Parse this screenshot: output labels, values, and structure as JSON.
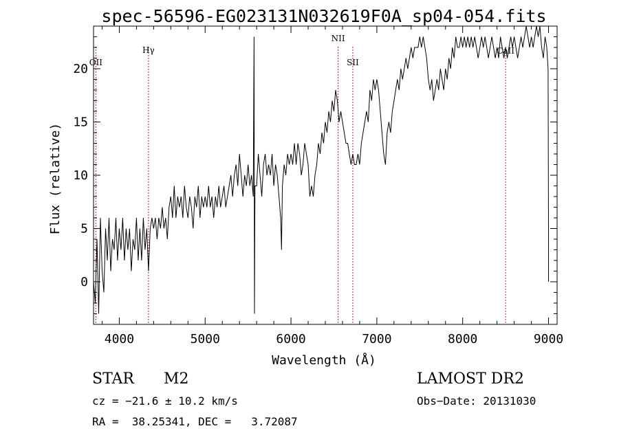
{
  "chart_data": {
    "type": "line",
    "title": "spec-56596-EG023131N032619F0A_sp04-054.fits",
    "xlabel": "Wavelength (Å)",
    "ylabel": "Flux (relative)",
    "xlim": [
      3700,
      9100
    ],
    "ylim": [
      -4,
      24
    ],
    "xticks": [
      4000,
      5000,
      6000,
      7000,
      8000,
      9000
    ],
    "yticks": [
      0,
      5,
      10,
      15,
      20
    ],
    "grid": false,
    "series": [
      {
        "points": [
          [
            3700,
            0
          ],
          [
            3720,
            -2
          ],
          [
            3740,
            4
          ],
          [
            3760,
            -3
          ],
          [
            3780,
            6
          ],
          [
            3800,
            1
          ],
          [
            3820,
            -1
          ],
          [
            3840,
            5
          ],
          [
            3860,
            2
          ],
          [
            3880,
            6
          ],
          [
            3900,
            1
          ],
          [
            3920,
            4
          ],
          [
            3940,
            3
          ],
          [
            3960,
            6
          ],
          [
            3980,
            2
          ],
          [
            4000,
            5
          ],
          [
            4020,
            3
          ],
          [
            4040,
            6
          ],
          [
            4060,
            2
          ],
          [
            4080,
            5
          ],
          [
            4100,
            3
          ],
          [
            4120,
            5
          ],
          [
            4140,
            1
          ],
          [
            4160,
            4
          ],
          [
            4180,
            3
          ],
          [
            4200,
            6
          ],
          [
            4220,
            2
          ],
          [
            4240,
            5
          ],
          [
            4260,
            2
          ],
          [
            4280,
            6
          ],
          [
            4300,
            3
          ],
          [
            4320,
            5
          ],
          [
            4340,
            1
          ],
          [
            4360,
            5
          ],
          [
            4380,
            6
          ],
          [
            4400,
            5
          ],
          [
            4420,
            6
          ],
          [
            4440,
            4
          ],
          [
            4460,
            6
          ],
          [
            4480,
            5
          ],
          [
            4500,
            7
          ],
          [
            4520,
            5
          ],
          [
            4540,
            6
          ],
          [
            4560,
            4
          ],
          [
            4580,
            7
          ],
          [
            4600,
            8
          ],
          [
            4620,
            6
          ],
          [
            4640,
            9
          ],
          [
            4660,
            6
          ],
          [
            4680,
            8
          ],
          [
            4700,
            7
          ],
          [
            4720,
            8
          ],
          [
            4740,
            6
          ],
          [
            4760,
            9
          ],
          [
            4780,
            7
          ],
          [
            4800,
            6
          ],
          [
            4820,
            8
          ],
          [
            4840,
            7
          ],
          [
            4860,
            5
          ],
          [
            4880,
            8
          ],
          [
            4900,
            7
          ],
          [
            4920,
            9
          ],
          [
            4940,
            6
          ],
          [
            4960,
            8
          ],
          [
            4980,
            7
          ],
          [
            5000,
            8
          ],
          [
            5020,
            7
          ],
          [
            5040,
            9
          ],
          [
            5060,
            7
          ],
          [
            5080,
            8
          ],
          [
            5100,
            6
          ],
          [
            5120,
            8
          ],
          [
            5140,
            7
          ],
          [
            5160,
            9
          ],
          [
            5180,
            7
          ],
          [
            5200,
            8
          ],
          [
            5220,
            9
          ],
          [
            5240,
            7
          ],
          [
            5260,
            8
          ],
          [
            5280,
            9
          ],
          [
            5300,
            10
          ],
          [
            5320,
            8
          ],
          [
            5340,
            10
          ],
          [
            5360,
            11
          ],
          [
            5380,
            9
          ],
          [
            5400,
            12
          ],
          [
            5420,
            10
          ],
          [
            5440,
            8
          ],
          [
            5460,
            10
          ],
          [
            5480,
            9
          ],
          [
            5500,
            11
          ],
          [
            5520,
            9
          ],
          [
            5540,
            10
          ],
          [
            5560,
            8
          ],
          [
            5570,
            23
          ],
          [
            5575,
            -3
          ],
          [
            5580,
            9
          ],
          [
            5600,
            9
          ],
          [
            5620,
            12
          ],
          [
            5640,
            10
          ],
          [
            5660,
            8
          ],
          [
            5680,
            11
          ],
          [
            5700,
            12
          ],
          [
            5720,
            10
          ],
          [
            5740,
            11
          ],
          [
            5760,
            10
          ],
          [
            5780,
            12
          ],
          [
            5800,
            9
          ],
          [
            5820,
            11
          ],
          [
            5840,
            10
          ],
          [
            5860,
            8
          ],
          [
            5880,
            6
          ],
          [
            5890,
            3
          ],
          [
            5900,
            9
          ],
          [
            5920,
            11
          ],
          [
            5940,
            10
          ],
          [
            5960,
            12
          ],
          [
            5980,
            11
          ],
          [
            6000,
            12
          ],
          [
            6020,
            11
          ],
          [
            6040,
            13
          ],
          [
            6060,
            11
          ],
          [
            6080,
            13
          ],
          [
            6100,
            12
          ],
          [
            6120,
            10
          ],
          [
            6140,
            11
          ],
          [
            6160,
            13
          ],
          [
            6180,
            12
          ],
          [
            6200,
            11
          ],
          [
            6220,
            8
          ],
          [
            6240,
            9
          ],
          [
            6260,
            8
          ],
          [
            6280,
            10
          ],
          [
            6300,
            11
          ],
          [
            6320,
            13
          ],
          [
            6340,
            12
          ],
          [
            6360,
            14
          ],
          [
            6380,
            13
          ],
          [
            6400,
            15
          ],
          [
            6420,
            14
          ],
          [
            6440,
            16
          ],
          [
            6460,
            15
          ],
          [
            6480,
            17
          ],
          [
            6500,
            16
          ],
          [
            6520,
            18
          ],
          [
            6540,
            17
          ],
          [
            6560,
            15
          ],
          [
            6580,
            16
          ],
          [
            6600,
            15
          ],
          [
            6620,
            14
          ],
          [
            6640,
            13
          ],
          [
            6660,
            13
          ],
          [
            6680,
            12
          ],
          [
            6700,
            11
          ],
          [
            6720,
            12
          ],
          [
            6740,
            11
          ],
          [
            6760,
            11
          ],
          [
            6780,
            12
          ],
          [
            6800,
            11
          ],
          [
            6820,
            13
          ],
          [
            6840,
            14
          ],
          [
            6860,
            15
          ],
          [
            6880,
            16
          ],
          [
            6900,
            15
          ],
          [
            6920,
            18
          ],
          [
            6940,
            17
          ],
          [
            6960,
            19
          ],
          [
            6980,
            18
          ],
          [
            7000,
            19
          ],
          [
            7020,
            18
          ],
          [
            7040,
            16
          ],
          [
            7060,
            14
          ],
          [
            7080,
            12
          ],
          [
            7100,
            11
          ],
          [
            7120,
            14
          ],
          [
            7140,
            15
          ],
          [
            7160,
            14
          ],
          [
            7180,
            16
          ],
          [
            7200,
            17
          ],
          [
            7220,
            18
          ],
          [
            7240,
            19
          ],
          [
            7260,
            18
          ],
          [
            7280,
            20
          ],
          [
            7300,
            19
          ],
          [
            7320,
            20
          ],
          [
            7340,
            21
          ],
          [
            7360,
            20
          ],
          [
            7380,
            21
          ],
          [
            7400,
            22
          ],
          [
            7420,
            21
          ],
          [
            7440,
            22
          ],
          [
            7460,
            22
          ],
          [
            7480,
            22
          ],
          [
            7500,
            23
          ],
          [
            7520,
            22
          ],
          [
            7540,
            23
          ],
          [
            7560,
            22
          ],
          [
            7580,
            21
          ],
          [
            7600,
            19
          ],
          [
            7620,
            18
          ],
          [
            7640,
            19
          ],
          [
            7660,
            17
          ],
          [
            7680,
            18
          ],
          [
            7700,
            19
          ],
          [
            7720,
            18
          ],
          [
            7740,
            20
          ],
          [
            7760,
            19
          ],
          [
            7780,
            18
          ],
          [
            7800,
            20
          ],
          [
            7820,
            19
          ],
          [
            7840,
            21
          ],
          [
            7860,
            20
          ],
          [
            7880,
            22
          ],
          [
            7900,
            21
          ],
          [
            7920,
            23
          ],
          [
            7940,
            22
          ],
          [
            7960,
            22
          ],
          [
            7980,
            23
          ],
          [
            8000,
            22
          ],
          [
            8020,
            23
          ],
          [
            8040,
            22
          ],
          [
            8060,
            23
          ],
          [
            8080,
            22
          ],
          [
            8100,
            23
          ],
          [
            8120,
            22
          ],
          [
            8140,
            23
          ],
          [
            8160,
            22
          ],
          [
            8180,
            21
          ],
          [
            8200,
            22
          ],
          [
            8220,
            23
          ],
          [
            8240,
            22
          ],
          [
            8260,
            23
          ],
          [
            8280,
            22
          ],
          [
            8300,
            21
          ],
          [
            8320,
            22
          ],
          [
            8340,
            23
          ],
          [
            8360,
            22
          ],
          [
            8380,
            21
          ],
          [
            8400,
            22
          ],
          [
            8420,
            21
          ],
          [
            8440,
            23
          ],
          [
            8460,
            22
          ],
          [
            8480,
            21
          ],
          [
            8500,
            22
          ],
          [
            8520,
            21
          ],
          [
            8540,
            22
          ],
          [
            8560,
            23
          ],
          [
            8580,
            22
          ],
          [
            8600,
            23
          ],
          [
            8620,
            22
          ],
          [
            8640,
            21
          ],
          [
            8660,
            22
          ],
          [
            8680,
            23
          ],
          [
            8700,
            22
          ],
          [
            8720,
            23
          ],
          [
            8740,
            24
          ],
          [
            8760,
            23
          ],
          [
            8780,
            22
          ],
          [
            8800,
            23
          ],
          [
            8820,
            22
          ],
          [
            8840,
            23
          ],
          [
            8860,
            24
          ],
          [
            8880,
            23
          ],
          [
            8900,
            24
          ],
          [
            8920,
            22
          ],
          [
            8940,
            21
          ],
          [
            8960,
            23
          ],
          [
            8980,
            22
          ],
          [
            8995,
            20
          ],
          [
            9000,
            5
          ],
          [
            9000,
            0
          ]
        ]
      }
    ],
    "line_markers": [
      {
        "label": "OII",
        "x": 3727
      },
      {
        "label": "Hγ",
        "x": 4340
      },
      {
        "label": "NII",
        "x": 6549
      },
      {
        "label": "SII",
        "x": 6720
      },
      {
        "label": "CaII",
        "x": 8500
      }
    ]
  },
  "info": {
    "class": "STAR",
    "subclass": "M2",
    "survey": "LAMOST DR2",
    "cz": "cz = −21.6 ± 10.2 km/s",
    "obs_date": "Obs−Date: 20131030",
    "radec": "RA =  38.25341, DEC =   3.72087"
  }
}
